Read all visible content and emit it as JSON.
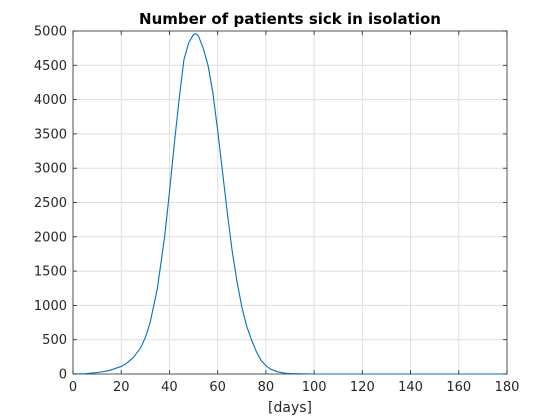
{
  "chart_data": {
    "type": "line",
    "title": "Number of patients sick in isolation",
    "xlabel": "[days]",
    "ylabel": "",
    "xlim": [
      0,
      180
    ],
    "ylim": [
      0,
      5000
    ],
    "xticks": [
      0,
      20,
      40,
      60,
      80,
      100,
      120,
      140,
      160,
      180
    ],
    "yticks": [
      0,
      500,
      1000,
      1500,
      2000,
      2500,
      3000,
      3500,
      4000,
      4500,
      5000
    ],
    "grid": true,
    "series": [
      {
        "color": "#0072bd",
        "x": [
          0,
          5,
          10,
          15,
          20,
          22,
          25,
          28,
          30,
          32,
          35,
          38,
          40,
          42,
          44,
          46,
          48,
          50,
          51,
          52,
          54,
          56,
          58,
          60,
          62,
          64,
          66,
          68,
          70,
          72,
          74,
          76,
          78,
          80,
          82,
          85,
          88,
          90,
          95,
          100,
          110,
          120,
          140,
          160,
          180
        ],
        "y": [
          0,
          5,
          20,
          50,
          110,
          150,
          240,
          380,
          530,
          750,
          1250,
          2000,
          2650,
          3350,
          4000,
          4580,
          4830,
          4950,
          4960,
          4930,
          4750,
          4500,
          4100,
          3550,
          2950,
          2350,
          1800,
          1350,
          980,
          700,
          500,
          330,
          200,
          120,
          70,
          30,
          12,
          6,
          2,
          0,
          0,
          0,
          0,
          0,
          0
        ]
      }
    ]
  }
}
